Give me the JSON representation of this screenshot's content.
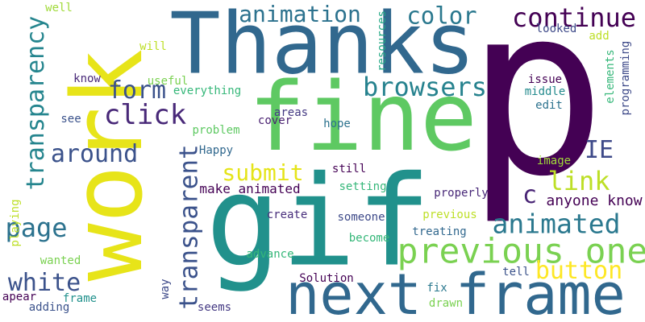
{
  "cloud": {
    "words": [
      {
        "text": "p",
        "color": "#440154"
      },
      {
        "text": "Thanks",
        "color": "#31688e"
      },
      {
        "text": "gif",
        "color": "#21918c"
      },
      {
        "text": "fine",
        "color": "#5ec962"
      },
      {
        "text": "work",
        "color": "#e7e419"
      },
      {
        "text": "next frame",
        "color": "#31688e"
      },
      {
        "text": "previous one",
        "color": "#7ad151"
      },
      {
        "text": "animated",
        "color": "#2a788e"
      },
      {
        "text": "transparency",
        "color": "#25858e"
      },
      {
        "text": "transparent",
        "color": "#3b528b"
      },
      {
        "text": "continue",
        "color": "#440154"
      },
      {
        "text": "animation",
        "color": "#2c728e"
      },
      {
        "text": "color",
        "color": "#2a788e"
      },
      {
        "text": "browsers",
        "color": "#26828e"
      },
      {
        "text": "form",
        "color": "#3b528b"
      },
      {
        "text": "click",
        "color": "#482878"
      },
      {
        "text": "around",
        "color": "#3b528b"
      },
      {
        "text": "submit",
        "color": "#e5e419"
      },
      {
        "text": "IE",
        "color": "#3e4a89"
      },
      {
        "text": "link",
        "color": "#bddf26"
      },
      {
        "text": "c",
        "color": "#482475"
      },
      {
        "text": "page",
        "color": "#2c728e"
      },
      {
        "text": "white",
        "color": "#3b528b"
      },
      {
        "text": "button",
        "color": "#fde725"
      },
      {
        "text": "make animated",
        "color": "#440154"
      },
      {
        "text": "anyone know",
        "color": "#440154"
      },
      {
        "text": "everything",
        "color": "#35b779"
      },
      {
        "text": "Happy",
        "color": "#31688e"
      },
      {
        "text": "problem",
        "color": "#5ec962"
      },
      {
        "text": "useful",
        "color": "#7ad151"
      },
      {
        "text": "know",
        "color": "#482878"
      },
      {
        "text": "see",
        "color": "#3b528b"
      },
      {
        "text": "will",
        "color": "#bddf26"
      },
      {
        "text": "well",
        "color": "#a0da39"
      },
      {
        "text": "areas",
        "color": "#443983"
      },
      {
        "text": "cover",
        "color": "#481f70"
      },
      {
        "text": "hope",
        "color": "#2c728e"
      },
      {
        "text": "still",
        "color": "#440154"
      },
      {
        "text": "setting",
        "color": "#35b779"
      },
      {
        "text": "create",
        "color": "#472d7b"
      },
      {
        "text": "someone",
        "color": "#3e4a89"
      },
      {
        "text": "properly",
        "color": "#482878"
      },
      {
        "text": "previous",
        "color": "#bddf26"
      },
      {
        "text": "treating",
        "color": "#31688e"
      },
      {
        "text": "become",
        "color": "#35b779"
      },
      {
        "text": "advance",
        "color": "#35b779"
      },
      {
        "text": "Solution",
        "color": "#440154"
      },
      {
        "text": "fix",
        "color": "#2a788e"
      },
      {
        "text": "tell",
        "color": "#3b528b"
      },
      {
        "text": "drawn",
        "color": "#7ad151"
      },
      {
        "text": "seems",
        "color": "#443983"
      },
      {
        "text": "way",
        "color": "#3e4a89"
      },
      {
        "text": "frame",
        "color": "#21918c"
      },
      {
        "text": "apear",
        "color": "#440154"
      },
      {
        "text": "adding",
        "color": "#3b528b"
      },
      {
        "text": "wanted",
        "color": "#7ad151"
      },
      {
        "text": "playing",
        "color": "#bddf26"
      },
      {
        "text": "resources",
        "color": "#22a884"
      },
      {
        "text": "looked",
        "color": "#3e4a89"
      },
      {
        "text": "add",
        "color": "#bddf26"
      },
      {
        "text": "issue",
        "color": "#440154"
      },
      {
        "text": "middle",
        "color": "#238a8d"
      },
      {
        "text": "edit",
        "color": "#2c728e"
      },
      {
        "text": "image",
        "color": "#a0da39"
      },
      {
        "text": "elements",
        "color": "#35b779"
      },
      {
        "text": "programming",
        "color": "#3e4a89"
      }
    ]
  }
}
